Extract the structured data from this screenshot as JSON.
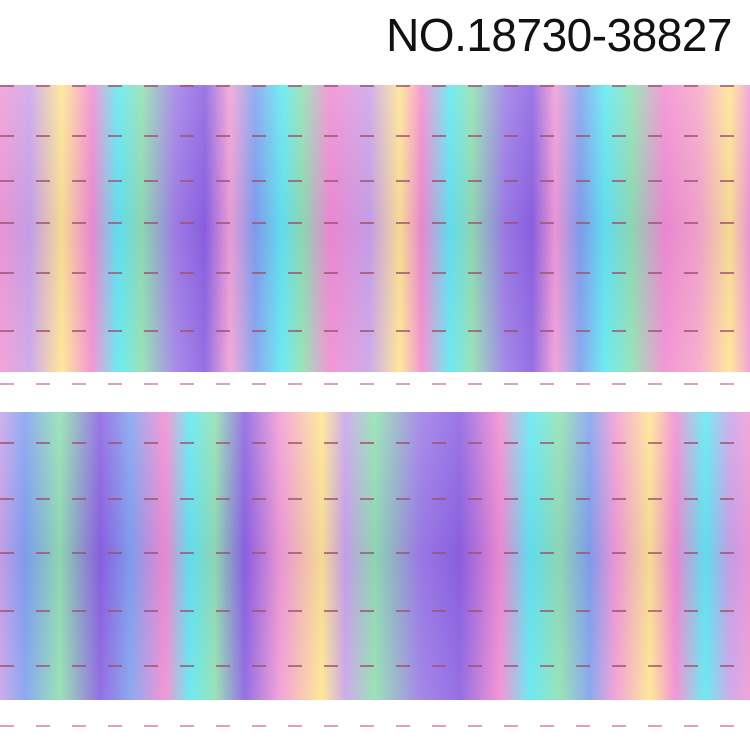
{
  "title": "NO.18730-38827"
}
